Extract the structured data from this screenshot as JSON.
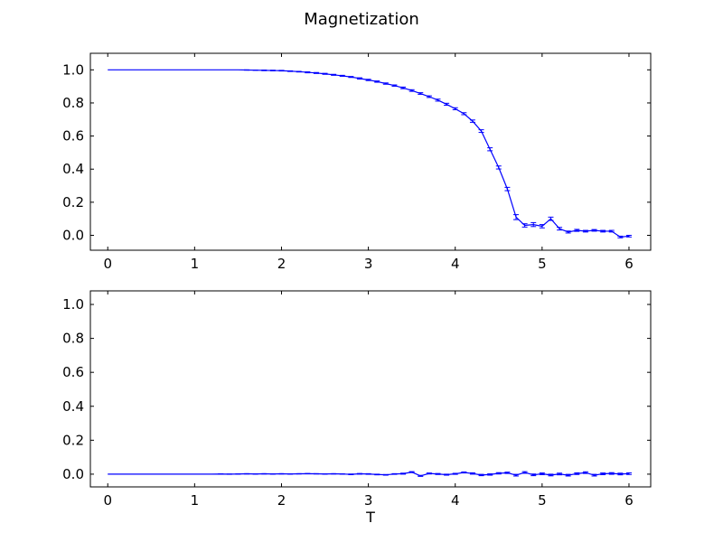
{
  "figure": {
    "title": "Magnetization"
  },
  "chart_data": [
    {
      "type": "line",
      "title": "",
      "xlabel": "",
      "ylabel": "",
      "xlim": [
        -0.2,
        6.25
      ],
      "ylim": [
        -0.09,
        1.1
      ],
      "xticks": [
        0,
        1,
        2,
        3,
        4,
        5,
        6
      ],
      "xtick_labels": [
        "0",
        "1",
        "2",
        "3",
        "4",
        "5",
        "6"
      ],
      "yticks": [
        0.0,
        0.2,
        0.4,
        0.6,
        0.8,
        1.0
      ],
      "ytick_labels": [
        "0.0",
        "0.2",
        "0.4",
        "0.6",
        "0.8",
        "1.0"
      ],
      "grid": false,
      "color": "#0000ff",
      "series": [
        {
          "x": [
            0,
            0.1,
            0.2,
            0.3,
            0.4,
            0.5,
            0.6,
            0.7,
            0.8,
            0.9,
            1.0,
            1.1,
            1.2,
            1.3,
            1.4,
            1.5,
            1.6,
            1.7,
            1.8,
            1.9,
            2.0,
            2.1,
            2.2,
            2.3,
            2.4,
            2.5,
            2.6,
            2.7,
            2.8,
            2.9,
            3.0,
            3.1,
            3.2,
            3.3,
            3.4,
            3.5,
            3.6,
            3.7,
            3.8,
            3.9,
            4.0,
            4.1,
            4.2,
            4.3,
            4.4,
            4.5,
            4.6,
            4.7,
            4.8,
            4.9,
            5.0,
            5.1,
            5.2,
            5.3,
            5.4,
            5.5,
            5.6,
            5.7,
            5.8,
            5.9,
            6.0
          ],
          "y": [
            1.0,
            1.0,
            1.0,
            1.0,
            1.0,
            1.0,
            1.0,
            1.0,
            1.0,
            1.0,
            1.0,
            1.0,
            1.0,
            1.0,
            1.0,
            1.0,
            0.999,
            0.998,
            0.997,
            0.996,
            0.995,
            0.992,
            0.989,
            0.985,
            0.981,
            0.976,
            0.97,
            0.964,
            0.957,
            0.948,
            0.939,
            0.929,
            0.917,
            0.905,
            0.891,
            0.875,
            0.857,
            0.838,
            0.817,
            0.792,
            0.765,
            0.735,
            0.69,
            0.63,
            0.52,
            0.41,
            0.28,
            0.11,
            0.06,
            0.065,
            0.055,
            0.1,
            0.04,
            0.02,
            0.03,
            0.025,
            0.03,
            0.025,
            0.025,
            -0.01,
            -0.005
          ],
          "yerr": [
            0,
            0,
            0,
            0,
            0,
            0,
            0,
            0,
            0,
            0,
            0,
            0,
            0,
            0,
            0,
            0,
            0.001,
            0.001,
            0.002,
            0.002,
            0.002,
            0.002,
            0.002,
            0.003,
            0.003,
            0.003,
            0.003,
            0.003,
            0.003,
            0.004,
            0.004,
            0.004,
            0.004,
            0.004,
            0.005,
            0.005,
            0.005,
            0.005,
            0.006,
            0.006,
            0.006,
            0.006,
            0.007,
            0.008,
            0.009,
            0.009,
            0.01,
            0.015,
            0.01,
            0.012,
            0.01,
            0.01,
            0.008,
            0.006,
            0.006,
            0.005,
            0.005,
            0.005,
            0.005,
            0.005,
            0.005
          ]
        }
      ]
    },
    {
      "type": "line",
      "title": "",
      "xlabel": "T",
      "ylabel": "",
      "xlim": [
        -0.2,
        6.25
      ],
      "ylim": [
        -0.075,
        1.08
      ],
      "xticks": [
        0,
        1,
        2,
        3,
        4,
        5,
        6
      ],
      "xtick_labels": [
        "0",
        "1",
        "2",
        "3",
        "4",
        "5",
        "6"
      ],
      "yticks": [
        0.0,
        0.2,
        0.4,
        0.6,
        0.8,
        1.0
      ],
      "ytick_labels": [
        "0.0",
        "0.2",
        "0.4",
        "0.6",
        "0.8",
        "1.0"
      ],
      "grid": false,
      "color": "#0000ff",
      "series": [
        {
          "x": [
            0,
            0.1,
            0.2,
            0.3,
            0.4,
            0.5,
            0.6,
            0.7,
            0.8,
            0.9,
            1.0,
            1.1,
            1.2,
            1.3,
            1.4,
            1.5,
            1.6,
            1.7,
            1.8,
            1.9,
            2.0,
            2.1,
            2.2,
            2.3,
            2.4,
            2.5,
            2.6,
            2.7,
            2.8,
            2.9,
            3.0,
            3.1,
            3.2,
            3.3,
            3.4,
            3.5,
            3.6,
            3.7,
            3.8,
            3.9,
            4.0,
            4.1,
            4.2,
            4.3,
            4.4,
            4.5,
            4.6,
            4.7,
            4.8,
            4.9,
            5.0,
            5.1,
            5.2,
            5.3,
            5.4,
            5.5,
            5.6,
            5.7,
            5.8,
            5.9,
            6.0
          ],
          "y": [
            0,
            0,
            0,
            0,
            0,
            0,
            0,
            0,
            0,
            0,
            0,
            0,
            0,
            0.001,
            0,
            0.001,
            0.002,
            0.001,
            0.002,
            0.001,
            0.002,
            0.001,
            0.002,
            0.003,
            0.002,
            0.001,
            0.002,
            0.001,
            -0.001,
            0.002,
            0.001,
            -0.002,
            -0.004,
            0.001,
            0.003,
            0.012,
            -0.01,
            0.004,
            0.001,
            -0.003,
            0.002,
            0.01,
            0.004,
            -0.005,
            -0.002,
            0.005,
            0.008,
            -0.006,
            0.01,
            -0.004,
            0.002,
            -0.005,
            0.001,
            -0.006,
            0.003,
            0.009,
            -0.006,
            0.002,
            0.004,
            0.001,
            0.003
          ],
          "yerr": [
            0,
            0,
            0,
            0,
            0,
            0,
            0,
            0,
            0,
            0,
            0,
            0,
            0,
            0.001,
            0.001,
            0.001,
            0.001,
            0.001,
            0.001,
            0.001,
            0.001,
            0.001,
            0.001,
            0.001,
            0.001,
            0.001,
            0.001,
            0.001,
            0.002,
            0.002,
            0.002,
            0.002,
            0.002,
            0.002,
            0.003,
            0.003,
            0.003,
            0.003,
            0.003,
            0.003,
            0.003,
            0.003,
            0.004,
            0.004,
            0.004,
            0.004,
            0.004,
            0.005,
            0.005,
            0.005,
            0.005,
            0.005,
            0.005,
            0.005,
            0.005,
            0.005,
            0.005,
            0.005,
            0.005,
            0.005,
            0.005
          ]
        }
      ]
    }
  ]
}
